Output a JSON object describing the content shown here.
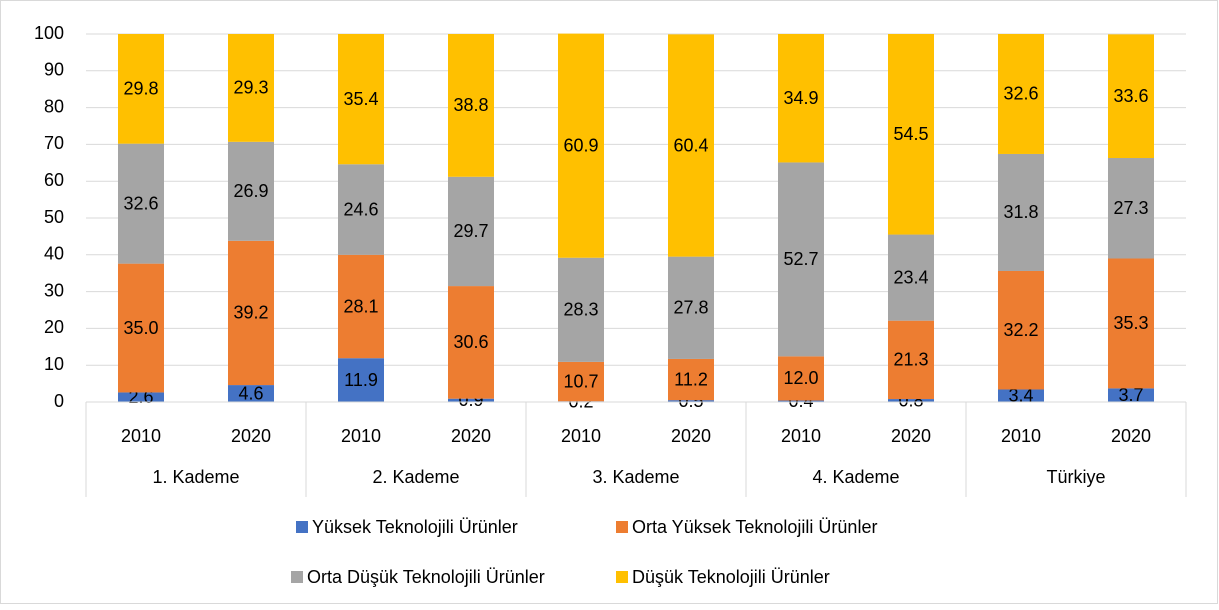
{
  "chart_data": {
    "type": "stacked_bar",
    "categories": [
      "2010",
      "2020",
      "2010",
      "2020",
      "2010",
      "2020",
      "2010",
      "2020",
      "2010",
      "2020"
    ],
    "groups": [
      "1. Kademe",
      "2. Kademe",
      "3. Kademe",
      "4. Kademe",
      "Türkiye"
    ],
    "series": [
      {
        "name": "Yüksek Teknolojili Ürünler",
        "color": "#4472c4",
        "values": [
          2.6,
          4.6,
          11.9,
          0.9,
          0.2,
          0.5,
          0.4,
          0.8,
          3.4,
          3.7
        ],
        "value_labels": [
          "2.6",
          "4.6",
          "11.9",
          "0.9",
          "0.2",
          "0.5",
          "0.4",
          "0.8",
          "3.4",
          "3.7"
        ]
      },
      {
        "name": "Orta Yüksek Teknolojili Ürünler",
        "color": "#ed7d31",
        "values": [
          35.0,
          39.2,
          28.1,
          30.6,
          10.7,
          11.2,
          12.0,
          21.3,
          32.2,
          35.3
        ],
        "value_labels": [
          "35.0",
          "39.2",
          "28.1",
          "30.6",
          "10.7",
          "11.2",
          "12.0",
          "21.3",
          "32.2",
          "35.3"
        ]
      },
      {
        "name": "Orta Düşük Teknolojili Ürünler",
        "color": "#a5a5a5",
        "values": [
          32.6,
          26.9,
          24.6,
          29.7,
          28.3,
          27.8,
          52.7,
          23.4,
          31.8,
          27.3
        ],
        "value_labels": [
          "32.6",
          "26.9",
          "24.6",
          "29.7",
          "28.3",
          "27.8",
          "52.7",
          "23.4",
          "31.8",
          "27.3"
        ]
      },
      {
        "name": "Düşük Teknolojili Ürünler",
        "color": "#ffc000",
        "values": [
          29.8,
          29.3,
          35.4,
          38.8,
          60.9,
          60.4,
          34.9,
          54.5,
          32.6,
          33.6
        ],
        "value_labels": [
          "29.8",
          "29.3",
          "35.4",
          "38.8",
          "60.9",
          "60.4",
          "34.9",
          "54.5",
          "32.6",
          "33.6"
        ]
      }
    ],
    "ylim": [
      0,
      100
    ],
    "yticks": [
      0,
      10,
      20,
      30,
      40,
      50,
      60,
      70,
      80,
      90,
      100
    ],
    "grid": true,
    "legend": "bottom"
  }
}
